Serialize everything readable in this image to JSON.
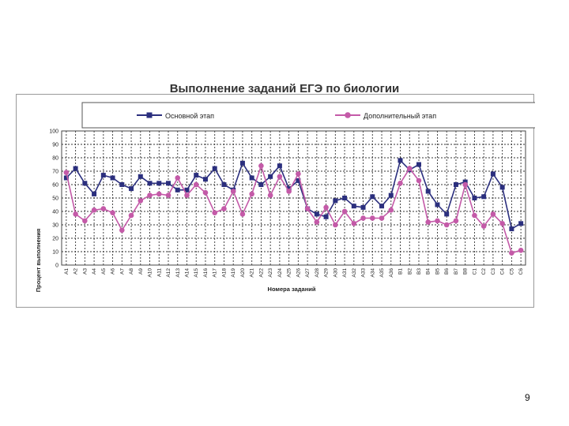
{
  "chart_data": {
    "type": "line",
    "title": "Выполнение заданий ЕГЭ по биологии",
    "xlabel": "Номера заданий",
    "ylabel": "Процент выполнения",
    "ylim": [
      0,
      100
    ],
    "yticks": [
      0,
      10,
      20,
      30,
      40,
      50,
      60,
      70,
      80,
      90,
      100
    ],
    "grid": true,
    "legend_position": "top",
    "categories": [
      "A1",
      "A2",
      "A3",
      "A4",
      "A5",
      "A6",
      "A7",
      "A8",
      "A9",
      "A10",
      "A11",
      "A12",
      "A13",
      "A14",
      "A15",
      "A16",
      "A17",
      "A18",
      "A19",
      "A20",
      "A21",
      "A22",
      "A23",
      "A24",
      "A25",
      "A26",
      "A27",
      "A28",
      "A29",
      "A30",
      "A31",
      "A32",
      "A33",
      "A34",
      "A35",
      "A36",
      "B1",
      "B2",
      "B3",
      "B4",
      "B5",
      "B6",
      "B7",
      "B8",
      "C1",
      "C2",
      "C3",
      "C4",
      "C5",
      "C6"
    ],
    "series": [
      {
        "name": "Основной этап",
        "color": "#2b2f7e",
        "marker": "square",
        "values": [
          65,
          72,
          61,
          53,
          67,
          65,
          60,
          57,
          66,
          61,
          61,
          61,
          56,
          56,
          67,
          64,
          72,
          60,
          56,
          76,
          65,
          60,
          66,
          74,
          57,
          63,
          42,
          38,
          36,
          48,
          50,
          44,
          43,
          51,
          44,
          52,
          78,
          71,
          75,
          55,
          45,
          38,
          60,
          62,
          50,
          51,
          68,
          58,
          27,
          31
        ]
      },
      {
        "name": "Дополнительный этап",
        "color": "#c45aa8",
        "marker": "circle",
        "values": [
          69,
          38,
          33,
          41,
          42,
          39,
          26,
          37,
          48,
          52,
          53,
          52,
          65,
          52,
          60,
          54,
          39,
          42,
          55,
          38,
          53,
          74,
          52,
          66,
          55,
          68,
          42,
          32,
          43,
          30,
          40,
          31,
          35,
          35,
          35,
          41,
          61,
          72,
          63,
          32,
          33,
          30,
          33,
          60,
          37,
          29,
          38,
          31,
          9,
          11
        ]
      }
    ]
  },
  "page": {
    "number": "9"
  }
}
